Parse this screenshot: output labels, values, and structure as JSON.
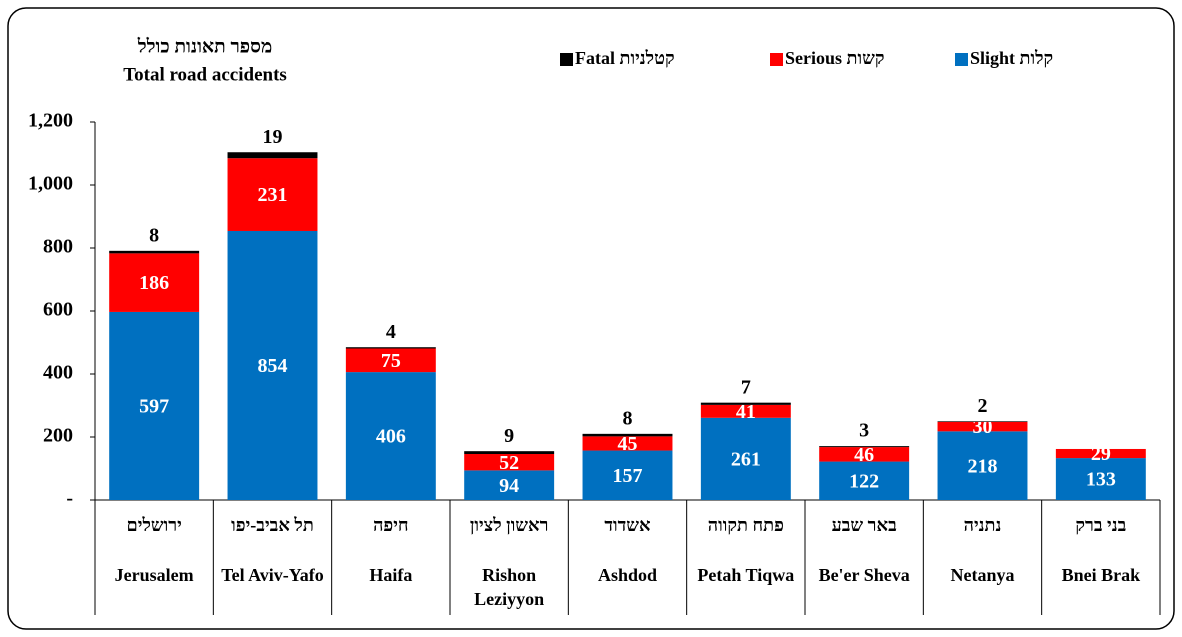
{
  "chart_data": {
    "type": "bar",
    "stacked": true,
    "title": "מספר תאונות כולל",
    "subtitle": "Total road accidents",
    "categories": [
      "Jerusalem",
      "Tel Aviv-Yafo",
      "Haifa",
      "Rishon Leziyyon",
      "Ashdod",
      "Petah Tiqwa",
      "Be'er Sheva",
      "Netanya",
      "Bnei Brak"
    ],
    "hebrew_labels": [
      "ירושלים",
      "תל אביב-יפו",
      "חיפה",
      "ראשון לציון",
      "אשדוד",
      "פתח תקווה",
      "באר שבע",
      "נתניה",
      "בני ברק"
    ],
    "series": [
      {
        "name": "Slight קלות",
        "color": "#0070c0",
        "values": [
          597,
          854,
          406,
          94,
          157,
          261,
          122,
          218,
          133
        ]
      },
      {
        "name": "Serious קשות",
        "color": "#ff0000",
        "values": [
          186,
          231,
          75,
          52,
          45,
          41,
          46,
          30,
          29
        ]
      },
      {
        "name": "Fatal קטלניות",
        "color": "#000000",
        "values": [
          8,
          19,
          4,
          9,
          8,
          7,
          3,
          2,
          null
        ]
      }
    ],
    "ylim": [
      0,
      1200
    ],
    "yticks": [
      {
        "value": 0,
        "label": "-"
      },
      200,
      400,
      600,
      800,
      {
        "value": 1000,
        "label": "1,000"
      },
      {
        "value": 1200,
        "label": "1,200"
      }
    ],
    "legend": "top",
    "grid": false
  }
}
